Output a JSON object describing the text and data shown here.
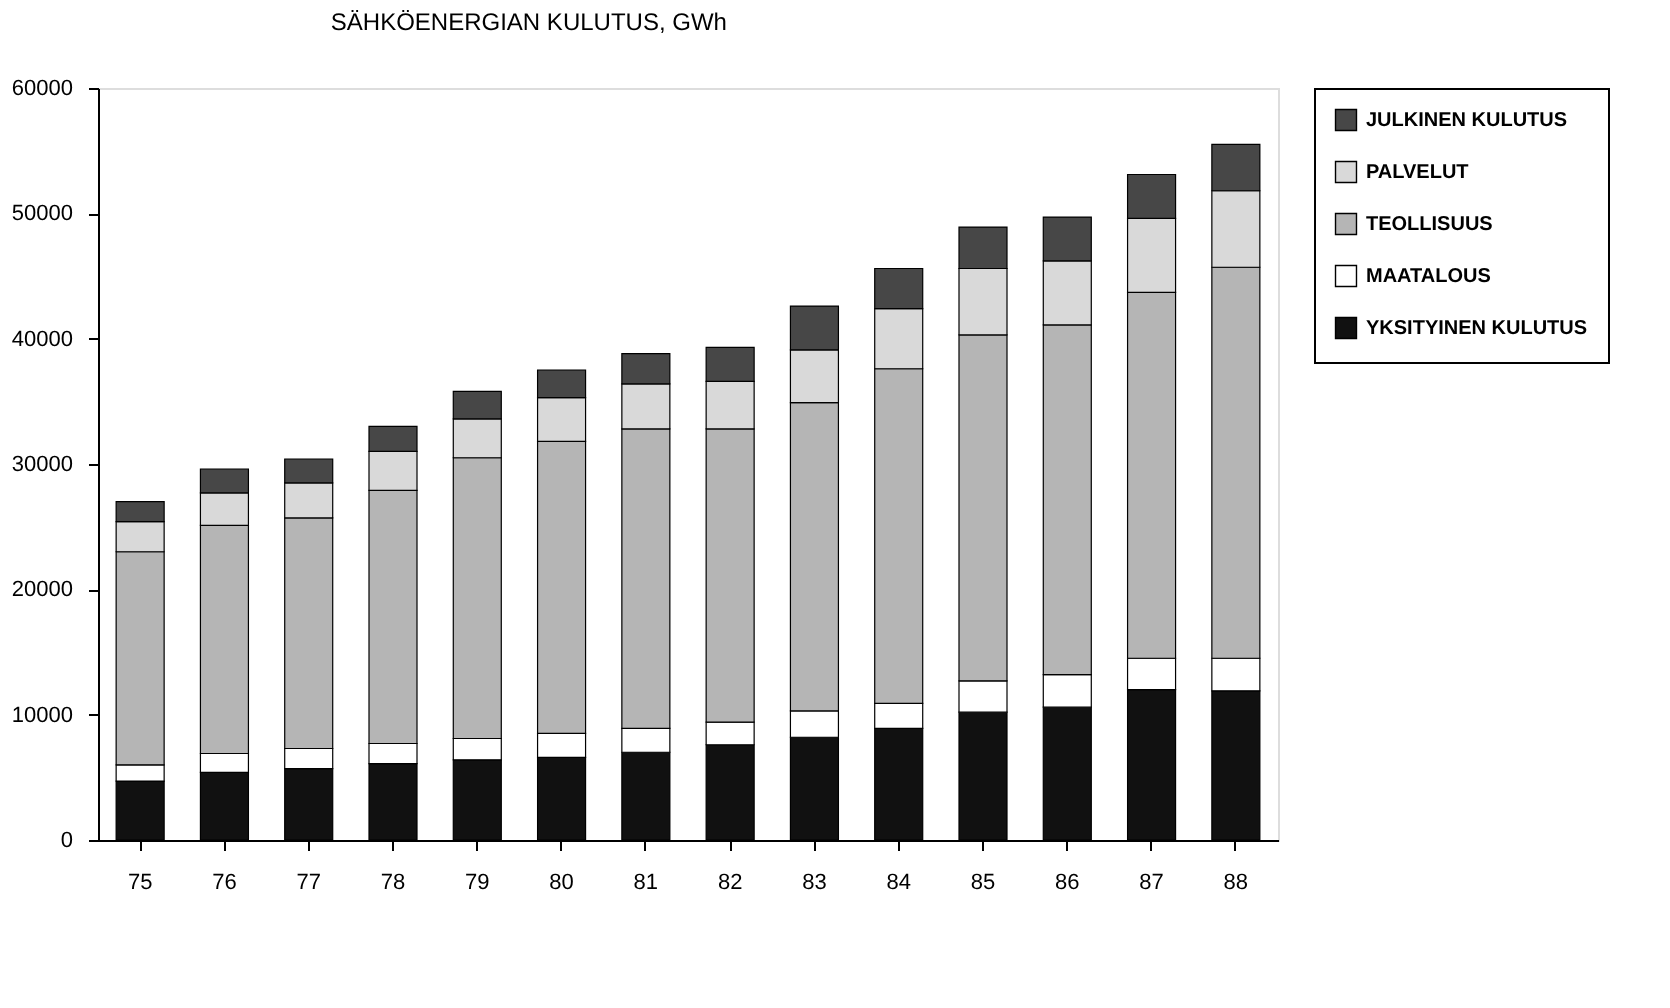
{
  "chart_data": {
    "type": "bar",
    "title": "SÄHKÖENERGIAN KULUTUS, GWh",
    "stacked": true,
    "legend": "right",
    "grid": false,
    "categories": [
      "75",
      "76",
      "77",
      "78",
      "79",
      "80",
      "81",
      "82",
      "83",
      "84",
      "85",
      "86",
      "87",
      "88"
    ],
    "ylim": [
      0,
      60000
    ],
    "yticks": [
      0,
      10000,
      20000,
      30000,
      40000,
      50000,
      60000
    ],
    "series": [
      {
        "name": "YKSITYINEN KULUTUS",
        "color": "#111111",
        "values": [
          4700,
          5400,
          5700,
          6100,
          6400,
          6600,
          7000,
          7600,
          8200,
          8900,
          10200,
          10600,
          12000,
          11900
        ]
      },
      {
        "name": "MAATALOUS",
        "color": "#ffffff",
        "values": [
          1300,
          1500,
          1600,
          1600,
          1700,
          1900,
          1900,
          1800,
          2100,
          2000,
          2500,
          2600,
          2500,
          2600
        ]
      },
      {
        "name": "TEOLLISUUS",
        "color": "#b5b5b5",
        "values": [
          17000,
          18200,
          18400,
          20200,
          22400,
          23300,
          23900,
          23400,
          24600,
          26700,
          27600,
          27900,
          29200,
          31200
        ]
      },
      {
        "name": "PALVELUT",
        "color": "#d9d9d9",
        "values": [
          2400,
          2600,
          2800,
          3100,
          3100,
          3500,
          3600,
          3800,
          4200,
          4800,
          5300,
          5100,
          5900,
          6100
        ]
      },
      {
        "name": "JULKINEN KULUTUS",
        "color": "#474747",
        "values": [
          1600,
          1900,
          1900,
          2000,
          2200,
          2200,
          2400,
          2700,
          3500,
          3200,
          3300,
          3500,
          3500,
          3700
        ]
      }
    ]
  }
}
